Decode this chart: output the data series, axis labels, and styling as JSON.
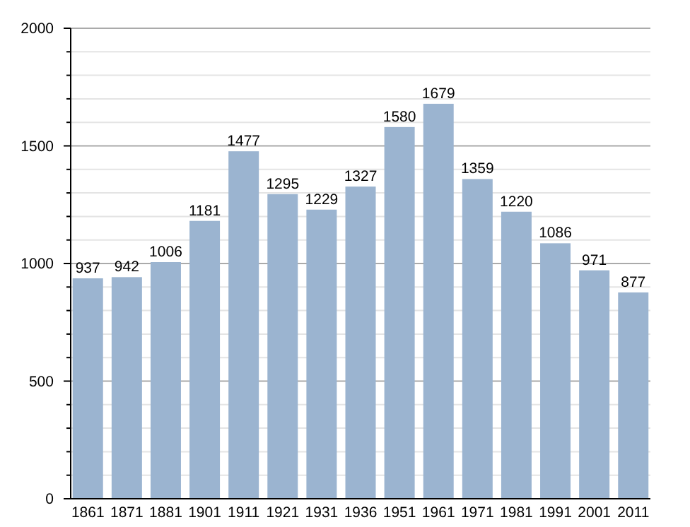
{
  "chart_data": {
    "type": "bar",
    "categories": [
      "1861",
      "1871",
      "1881",
      "1901",
      "1911",
      "1921",
      "1931",
      "1936",
      "1951",
      "1961",
      "1971",
      "1981",
      "1991",
      "2001",
      "2011"
    ],
    "values": [
      937,
      942,
      1006,
      1181,
      1477,
      1295,
      1229,
      1327,
      1580,
      1679,
      1359,
      1220,
      1086,
      971,
      877
    ],
    "color": "#9bb4d0",
    "data_labels": true,
    "grid": "y",
    "ylim": [
      0,
      2000
    ],
    "yticks": [
      0,
      {
        "value": 100,
        "label": null
      },
      {
        "value": 200,
        "label": null
      },
      {
        "value": 300,
        "label": null
      },
      {
        "value": 400,
        "label": null
      },
      500,
      {
        "value": 600,
        "label": null
      },
      {
        "value": 700,
        "label": null
      },
      {
        "value": 800,
        "label": null
      },
      {
        "value": 900,
        "label": null
      },
      1000,
      {
        "value": 1100,
        "label": null
      },
      {
        "value": 1200,
        "label": null
      },
      {
        "value": 1300,
        "label": null
      },
      {
        "value": 1400,
        "label": null
      },
      1500,
      {
        "value": 1600,
        "label": null
      },
      {
        "value": 1700,
        "label": null
      },
      {
        "value": 1800,
        "label": null
      },
      {
        "value": 1900,
        "label": null
      },
      2000
    ]
  }
}
